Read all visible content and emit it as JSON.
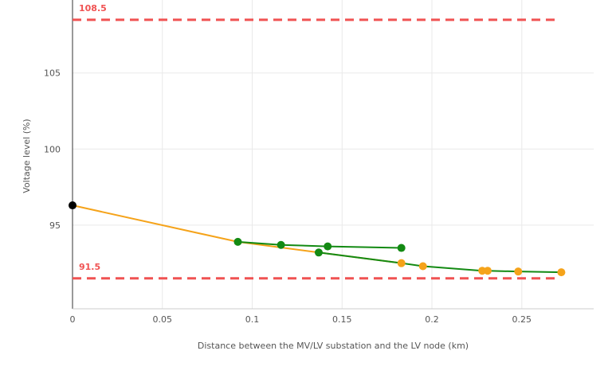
{
  "chart_data": {
    "type": "line",
    "xlabel": "Distance between the MV/LV substation and the LV node (km)",
    "ylabel": "Voltage level (%)",
    "xlim": [
      0,
      0.29
    ],
    "ylim": [
      89.5,
      109.8
    ],
    "x_ticks": [
      {
        "value": 0,
        "label": "0"
      },
      {
        "value": 0.05,
        "label": "0.05"
      },
      {
        "value": 0.1,
        "label": "0.1"
      },
      {
        "value": 0.15,
        "label": "0.15"
      },
      {
        "value": 0.2,
        "label": "0.2"
      },
      {
        "value": 0.25,
        "label": "0.25"
      }
    ],
    "y_ticks": [
      {
        "value": 95,
        "label": "95"
      },
      {
        "value": 100,
        "label": "100"
      },
      {
        "value": 105,
        "label": "105"
      }
    ],
    "grid": true,
    "limits": [
      {
        "value": 108.5,
        "label": "108.5",
        "color": "#f05252"
      },
      {
        "value": 91.5,
        "label": "91.5",
        "color": "#f05252"
      }
    ],
    "segments": [
      {
        "color": "#f5a31a",
        "points": [
          [
            0,
            96.3
          ],
          [
            0.092,
            93.9
          ],
          [
            0.137,
            93.2
          ],
          [
            0.183,
            92.5
          ]
        ]
      },
      {
        "color": "#138a13",
        "points": [
          [
            0.092,
            93.9
          ],
          [
            0.116,
            93.7
          ],
          [
            0.142,
            93.6
          ],
          [
            0.183,
            93.5
          ]
        ]
      },
      {
        "color": "#138a13",
        "points": [
          [
            0.137,
            93.2
          ],
          [
            0.183,
            92.5
          ],
          [
            0.195,
            92.3
          ],
          [
            0.228,
            92.0
          ],
          [
            0.231,
            92.0
          ],
          [
            0.248,
            91.95
          ],
          [
            0.272,
            91.9
          ]
        ]
      }
    ],
    "markers": [
      {
        "x": 0,
        "y": 96.3,
        "color": "#000000"
      },
      {
        "x": 0.092,
        "y": 93.9,
        "color": "#138a13"
      },
      {
        "x": 0.116,
        "y": 93.7,
        "color": "#138a13"
      },
      {
        "x": 0.142,
        "y": 93.6,
        "color": "#138a13"
      },
      {
        "x": 0.183,
        "y": 93.5,
        "color": "#138a13"
      },
      {
        "x": 0.137,
        "y": 93.2,
        "color": "#138a13"
      },
      {
        "x": 0.183,
        "y": 92.5,
        "color": "#f5a31a"
      },
      {
        "x": 0.195,
        "y": 92.3,
        "color": "#f5a31a"
      },
      {
        "x": 0.228,
        "y": 92.0,
        "color": "#f5a31a"
      },
      {
        "x": 0.231,
        "y": 92.0,
        "color": "#f5a31a"
      },
      {
        "x": 0.248,
        "y": 91.95,
        "color": "#f5a31a"
      },
      {
        "x": 0.272,
        "y": 91.9,
        "color": "#f5a31a"
      }
    ]
  }
}
